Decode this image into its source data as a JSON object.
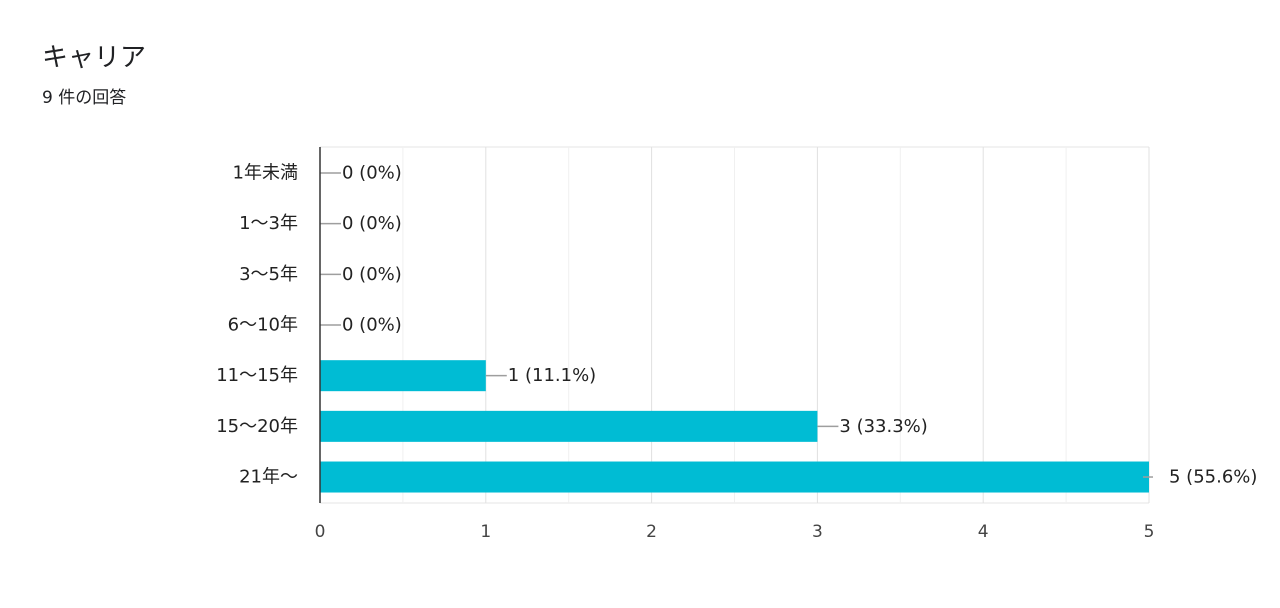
{
  "card": {
    "title": "キャリア",
    "subtitle": "9 件の回答"
  },
  "chart_data": {
    "type": "bar",
    "orientation": "horizontal",
    "categories": [
      "1年未満",
      "1〜3年",
      "3〜5年",
      "6〜10年",
      "11〜15年",
      "15〜20年",
      "21年〜"
    ],
    "values": [
      0,
      0,
      0,
      0,
      1,
      3,
      5
    ],
    "data_labels": [
      "0 (0%)",
      "0 (0%)",
      "0 (0%)",
      "0 (0%)",
      "1 (11.1%)",
      "3 (33.3%)",
      "5 (55.6%)"
    ],
    "xlim": [
      0,
      5
    ],
    "x_ticks": [
      0,
      1,
      2,
      3,
      4,
      5
    ],
    "grid": true,
    "bar_color": "#00bcd4",
    "title": "",
    "xlabel": "",
    "ylabel": ""
  }
}
